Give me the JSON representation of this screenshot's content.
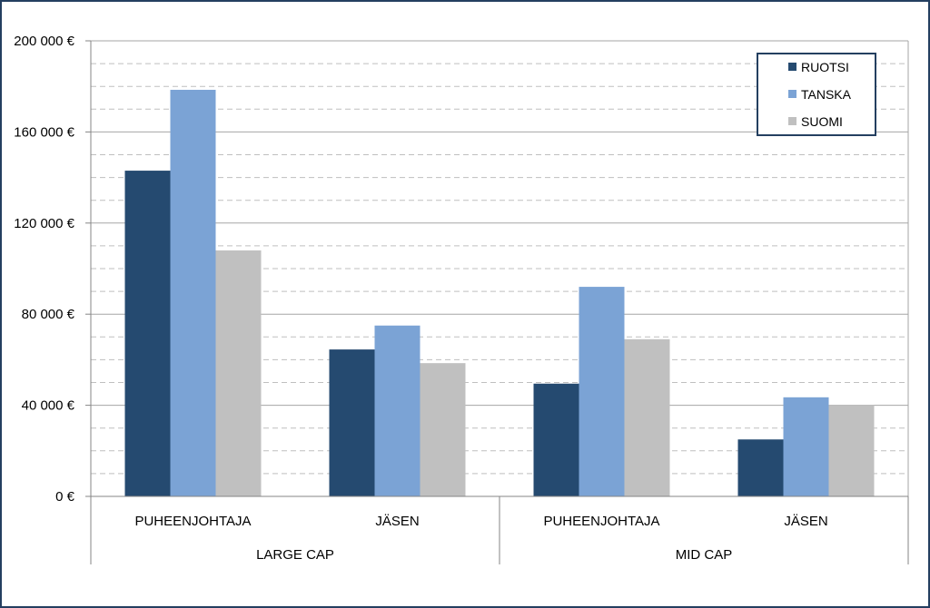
{
  "chart_data": {
    "type": "bar",
    "group_labels": [
      "LARGE CAP",
      "MID CAP"
    ],
    "categories": [
      "PUHEENJOHTAJA",
      "JÄSEN",
      "PUHEENJOHTAJA",
      "JÄSEN"
    ],
    "series": [
      {
        "name": "RUOTSI",
        "color": "#254A70",
        "values": [
          143000,
          64500,
          49500,
          25000
        ]
      },
      {
        "name": "TANSKA",
        "color": "#7BA3D5",
        "values": [
          178500,
          75000,
          92000,
          43500
        ]
      },
      {
        "name": "SUOMI",
        "color": "#C0C0C0",
        "values": [
          108000,
          58500,
          69000,
          40000
        ]
      }
    ],
    "y_ticks": [
      "0 €",
      "40 000 €",
      "80 000 €",
      "120 000 €",
      "160 000 €",
      "200 000 €"
    ],
    "y_tick_values": [
      0,
      40000,
      80000,
      120000,
      160000,
      200000
    ],
    "ylim": [
      0,
      200000
    ],
    "minor_grid_step": 10000,
    "grid": true,
    "legend_position": "top-right",
    "frame_color": "#243F60"
  }
}
